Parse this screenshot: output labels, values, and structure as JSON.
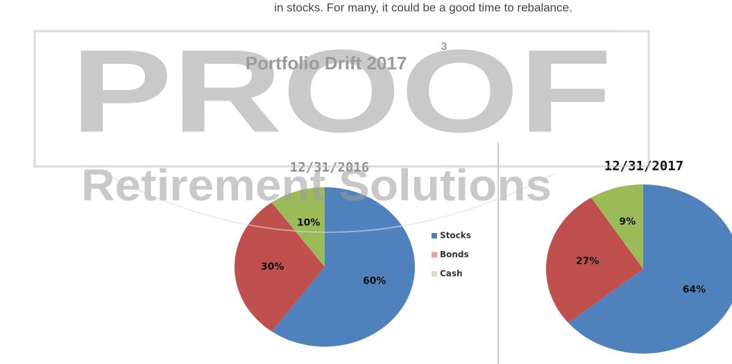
{
  "intro": "in stocks. For many, it could be a good time to rebalance.",
  "heading": {
    "text": "Portfolio Drift 2017",
    "note": "3"
  },
  "watermark": {
    "mark": "PROOF",
    "brand": "Retirement Solutions"
  },
  "chart_data": [
    {
      "type": "pie",
      "title": "12/31/2016",
      "title_color": "#8c8c8c",
      "legend": true,
      "categories": [
        "Stocks",
        "Bonds",
        "Cash"
      ],
      "colors": [
        "#4f81bd",
        "#c0504d",
        "#9bbb59"
      ],
      "legend_colors": [
        "#4f81bd",
        "#e6a09e",
        "#d7e4bd"
      ],
      "values": [
        60,
        30,
        10
      ],
      "value_labels": [
        "60%",
        "30%",
        "10%"
      ]
    },
    {
      "type": "pie",
      "title": "12/31/2017",
      "title_color": "#111111",
      "legend": false,
      "categories": [
        "Stocks",
        "Bonds",
        "Cash"
      ],
      "colors": [
        "#4f81bd",
        "#c0504d",
        "#9bbb59"
      ],
      "values": [
        64,
        27,
        9
      ],
      "value_labels": [
        "64%",
        "27%",
        "9%"
      ]
    }
  ]
}
